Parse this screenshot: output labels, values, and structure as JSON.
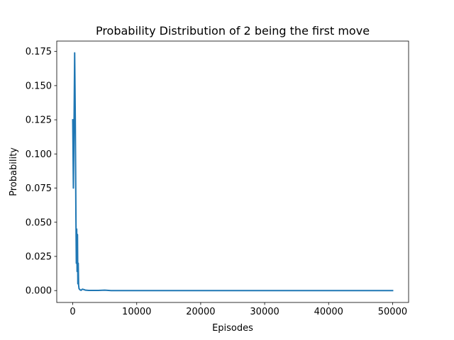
{
  "chart_data": {
    "type": "line",
    "title": "Probability Distribution of 2 being the first move",
    "xlabel": "Episodes",
    "ylabel": "Probability",
    "xlim": [
      -2500,
      52500
    ],
    "ylim": [
      -0.0087,
      0.1826
    ],
    "x_ticks": [
      0,
      10000,
      20000,
      30000,
      40000,
      50000
    ],
    "x_tick_labels": [
      "0",
      "10000",
      "20000",
      "30000",
      "40000",
      "50000"
    ],
    "y_ticks": [
      0.0,
      0.025,
      0.05,
      0.075,
      0.1,
      0.125,
      0.15,
      0.175
    ],
    "y_tick_labels": [
      "0.000",
      "0.025",
      "0.050",
      "0.075",
      "0.100",
      "0.125",
      "0.150",
      "0.175"
    ],
    "grid": false,
    "legend": "none",
    "series": [
      {
        "color": "#1f77b4",
        "x": [
          0,
          100,
          200,
          300,
          350,
          400,
          450,
          500,
          560,
          620,
          680,
          740,
          800,
          860,
          920,
          980,
          1050,
          1150,
          1300,
          1500,
          1700,
          2000,
          2500,
          3000,
          4000,
          5000,
          6000,
          10000,
          20000,
          30000,
          40000,
          50000
        ],
        "y": [
          0.125,
          0.075,
          0.12,
          0.174,
          0.15,
          0.125,
          0.09,
          0.053,
          0.02,
          0.045,
          0.014,
          0.041,
          0.005,
          0.02,
          0.004,
          0.0015,
          0.001,
          0.0005,
          0.0002,
          0.001,
          0.0008,
          0.0003,
          0.0001,
          0.0001,
          0.0001,
          0.0003,
          0.0,
          0.0,
          0.0,
          0.0,
          0.0,
          0.0
        ]
      }
    ]
  }
}
